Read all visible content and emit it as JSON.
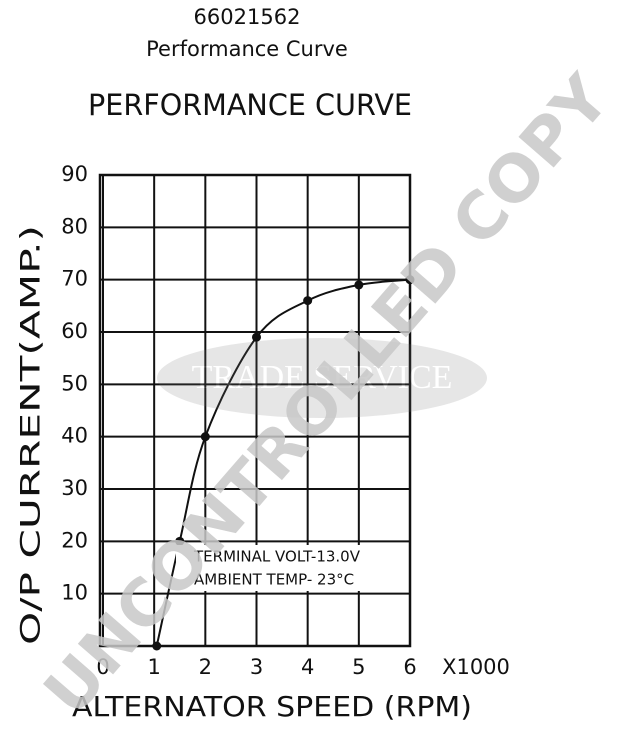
{
  "chart_data": {
    "type": "line",
    "title": "66021562",
    "subtitle": "Performance Curve",
    "chart_title": "PERFORMANCE CURVE",
    "x_label": "ALTERNATOR SPEED (RPM)",
    "y_label": "O/P CURRENT(AMP.)",
    "x_unit": "X1000",
    "annotations": [
      "TERMINAL VOLT-13.0V",
      "AMBIENT TEMP- 23°C"
    ],
    "watermarks": [
      "UNCONTROLLED COPY",
      "TRADE SERVICE"
    ],
    "series": [
      {
        "name": "Output current",
        "color": "#111111",
        "x": [
          1.05,
          1.5,
          2,
          3,
          4,
          5,
          6
        ],
        "values": [
          0,
          20,
          40,
          59,
          66,
          69,
          70
        ]
      }
    ],
    "xlim": [
      0,
      6
    ],
    "xticks": [
      0,
      1,
      2,
      3,
      4,
      5,
      6
    ],
    "ylim": [
      0,
      90
    ],
    "yticks": [
      10,
      20,
      30,
      40,
      50,
      60,
      70,
      80,
      90
    ],
    "grid": true
  }
}
